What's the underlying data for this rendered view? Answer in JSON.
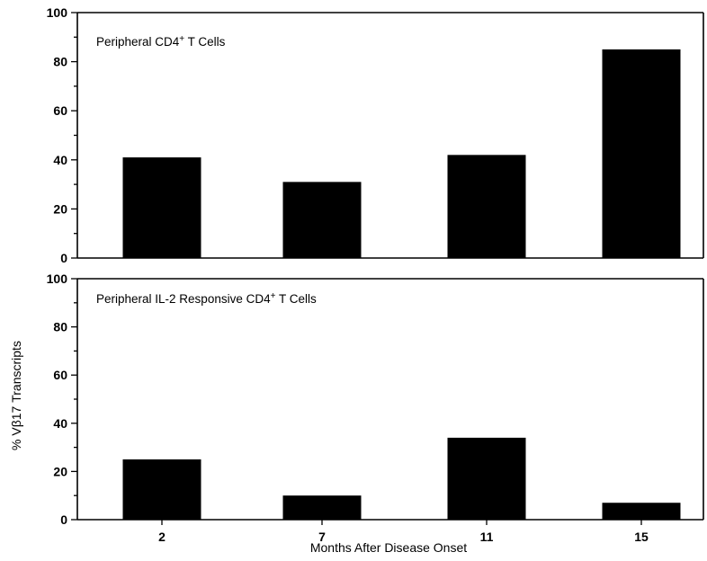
{
  "chart_data": {
    "type": "bar",
    "ylabel": "% Vβ17 Transcripts",
    "xlabel": "Months After Disease Onset",
    "categories": [
      "2",
      "7",
      "11",
      "15"
    ],
    "ylim": [
      0,
      100
    ],
    "yticks": [
      "0",
      "20",
      "40",
      "60",
      "80",
      "100"
    ],
    "grid": false,
    "bar_color": "#000000",
    "panels": [
      {
        "title_main": "Peripheral CD4",
        "title_sup": "+",
        "title_rest": " T Cells",
        "values": [
          41,
          31,
          42,
          85
        ]
      },
      {
        "title_main": "Peripheral IL-2 Responsive CD4",
        "title_sup": "+",
        "title_rest": " T Cells",
        "values": [
          25,
          10,
          34,
          7
        ]
      }
    ]
  }
}
